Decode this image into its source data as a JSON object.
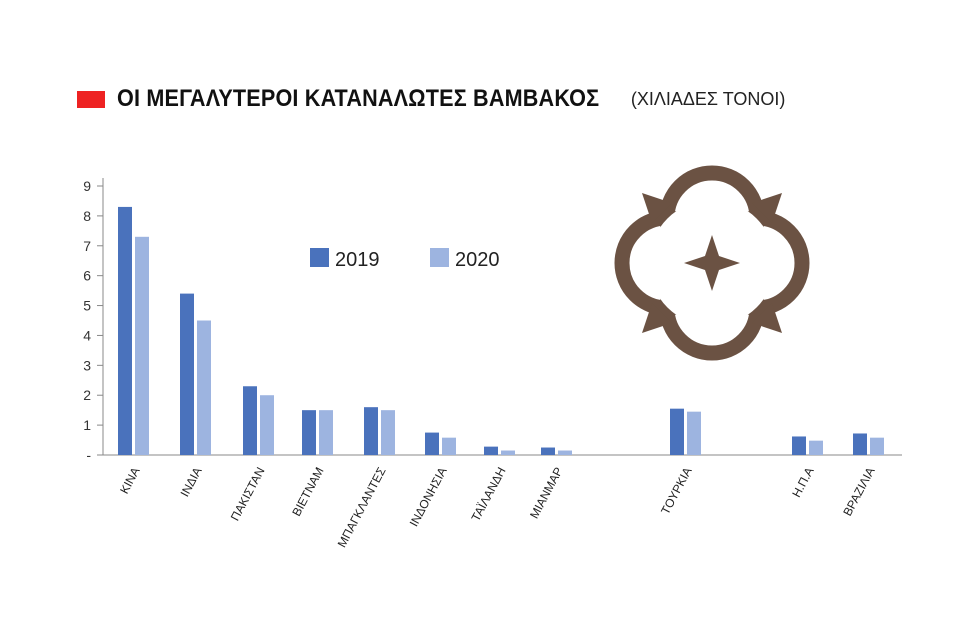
{
  "title": {
    "main": "ΟΙ ΜΕΓΑΛΥΤΕΡΟΙ ΚΑΤΑΝΑΛΩΤΕΣ ΒΑΜΒΑΚΟΣ",
    "unit": "(ΧΙΛΙΑΔΕΣ ΤΟΝΟΙ)",
    "marker_color": "#ee2222"
  },
  "logo": {
    "icon": "cotton-flower-icon",
    "color": "#6b5243"
  },
  "chart_data": {
    "type": "bar",
    "categories": [
      "ΚΙΝΑ",
      "ΙΝΔΙΑ",
      "ΠΑΚΙΣΤΑΝ",
      "ΒΙΕΤΝΑΜ",
      "ΜΠΑΓΚΛΑΝΤΕΣ",
      "ΙΝΔΟΝΗΣΙΑ",
      "ΤΑΪΛΑΝΔΗ",
      "ΜΙΑΝΜΑΡ",
      "ΤΟΥΡΚΙΑ",
      "Η.Π.Α",
      "ΒΡΑΖΙΛΙΑ"
    ],
    "series": [
      {
        "name": "2019",
        "color": "#4a72bc",
        "values": [
          8.3,
          5.4,
          2.3,
          1.5,
          1.6,
          0.75,
          0.28,
          0.25,
          1.55,
          0.62,
          0.72
        ]
      },
      {
        "name": "2020",
        "color": "#9db4e0",
        "values": [
          7.3,
          4.5,
          2.0,
          1.5,
          1.5,
          0.58,
          0.15,
          0.15,
          1.45,
          0.48,
          0.58
        ]
      }
    ],
    "y_ticks": [
      "-",
      "1",
      "2",
      "3",
      "4",
      "5",
      "6",
      "7",
      "8",
      "9"
    ],
    "ylim": [
      0,
      9
    ],
    "grid": false,
    "legend_position": "top-center"
  }
}
